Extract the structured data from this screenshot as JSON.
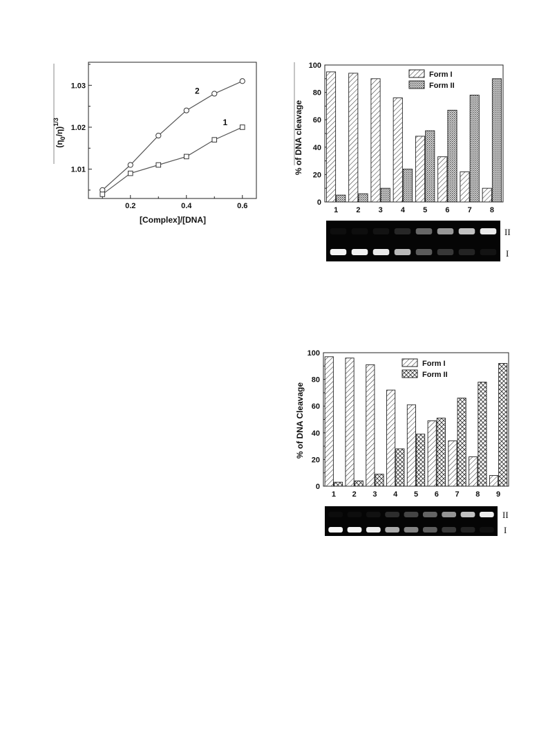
{
  "chart_data": [
    {
      "id": "viscosity",
      "type": "line",
      "xlabel": "[Complex]/[DNA]",
      "ylabel": "(η0/η)^1/3",
      "ylabel_main": "(η",
      "ylabel_sub1": "0",
      "ylabel_mid": "/η)",
      "ylabel_sup": "1/3",
      "xlim": [
        0.05,
        0.65
      ],
      "ylim": [
        1.003,
        1.0355
      ],
      "xticks": [
        0.2,
        0.4,
        0.6
      ],
      "xtick_labels": [
        "0.2",
        "0.4",
        "0.6"
      ],
      "yticks": [
        1.01,
        1.02,
        1.03
      ],
      "ytick_labels": [
        "1.01",
        "1.02",
        "1.03"
      ],
      "series": [
        {
          "name": "2",
          "marker": "circle",
          "x": [
            0.1,
            0.2,
            0.3,
            0.4,
            0.5,
            0.6
          ],
          "y": [
            1.005,
            1.011,
            1.018,
            1.024,
            1.028,
            1.031
          ]
        },
        {
          "name": "1",
          "marker": "square",
          "x": [
            0.1,
            0.2,
            0.3,
            0.4,
            0.5,
            0.6
          ],
          "y": [
            1.004,
            1.009,
            1.011,
            1.013,
            1.017,
            1.02
          ]
        }
      ]
    },
    {
      "id": "cleavage-1",
      "type": "bar",
      "ylabel": "% of DNA cleavage",
      "ylim": [
        0,
        100
      ],
      "yticks": [
        0,
        20,
        40,
        60,
        80,
        100
      ],
      "ytick_labels": [
        "0",
        "20",
        "40",
        "60",
        "80",
        "100"
      ],
      "categories": [
        "1",
        "2",
        "3",
        "4",
        "5",
        "6",
        "7",
        "8"
      ],
      "legend_position": "top-right",
      "series": [
        {
          "name": "Form I",
          "pattern": "diagonal",
          "values": [
            95,
            94,
            90,
            76,
            48,
            33,
            22,
            10
          ]
        },
        {
          "name": "Form II",
          "pattern": "dense-dots",
          "values": [
            5,
            6,
            10,
            24,
            52,
            67,
            78,
            90
          ]
        }
      ],
      "gel_labels": [
        "II",
        "I"
      ]
    },
    {
      "id": "cleavage-2",
      "type": "bar",
      "ylabel": "% of DNA Cleavage",
      "ylim": [
        0,
        100
      ],
      "yticks": [
        0,
        20,
        40,
        60,
        80,
        100
      ],
      "ytick_labels": [
        "0",
        "20",
        "40",
        "60",
        "80",
        "100"
      ],
      "categories": [
        "1",
        "2",
        "3",
        "4",
        "5",
        "6",
        "7",
        "8",
        "9"
      ],
      "legend_position": "top-right",
      "series": [
        {
          "name": "Form I",
          "pattern": "diagonal",
          "values": [
            97,
            96,
            91,
            72,
            61,
            49,
            34,
            22,
            8
          ]
        },
        {
          "name": "Form II",
          "pattern": "crosshatch",
          "values": [
            3,
            4,
            9,
            28,
            39,
            51,
            66,
            78,
            92
          ]
        }
      ],
      "gel_labels": [
        "II",
        "I"
      ]
    }
  ]
}
